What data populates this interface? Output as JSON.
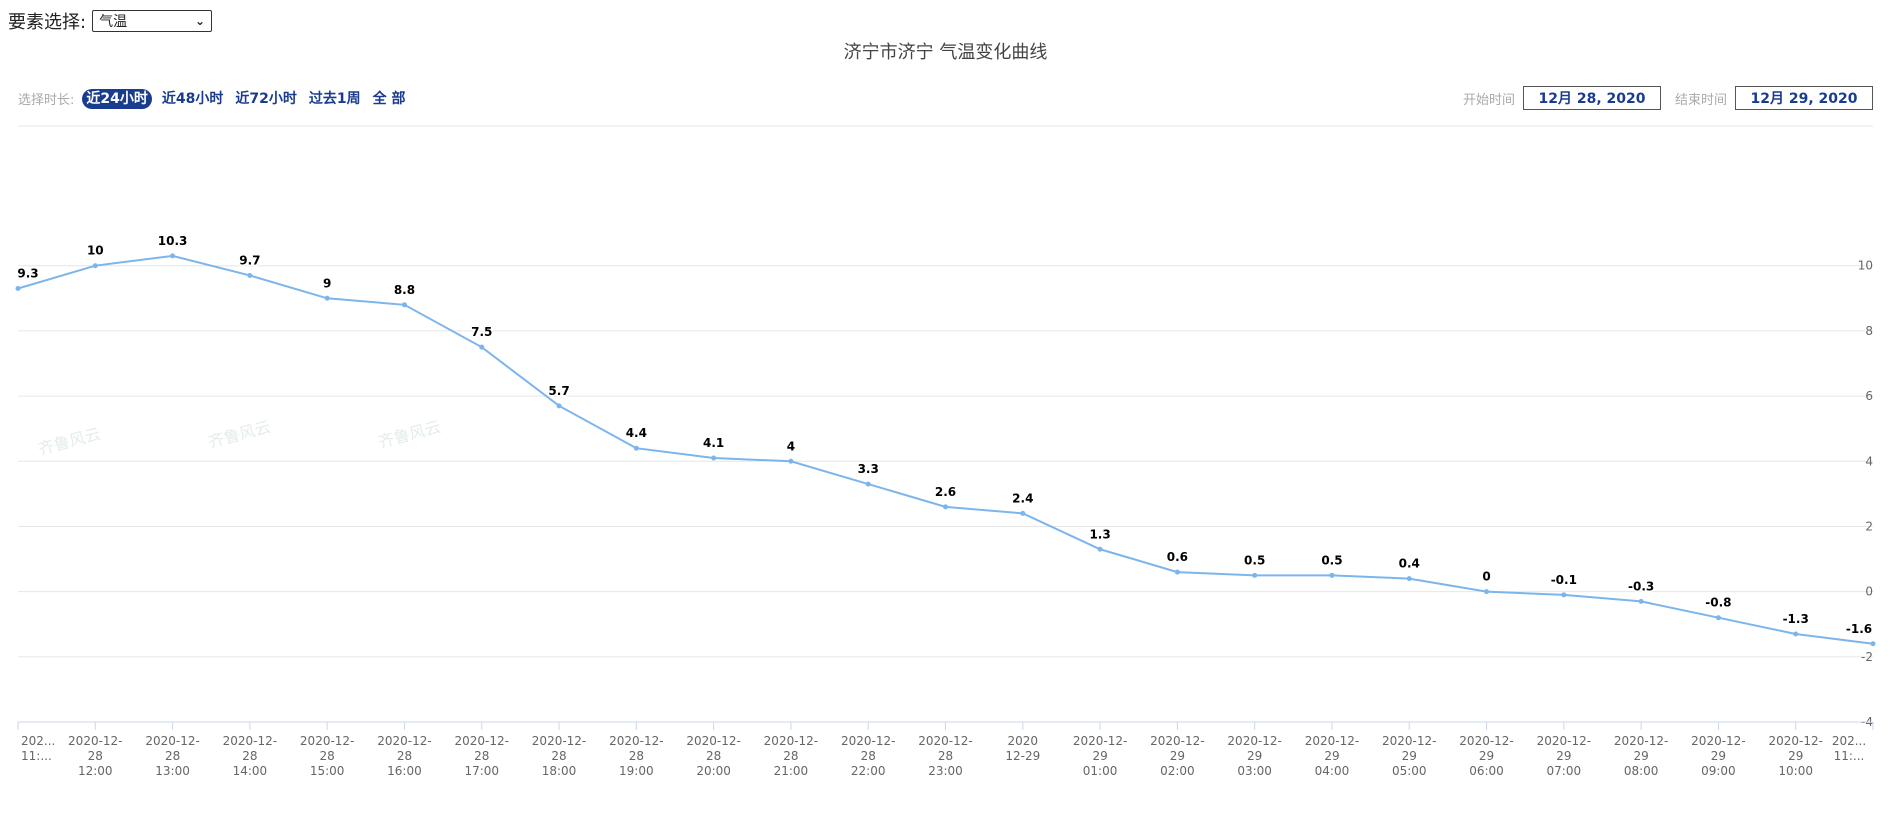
{
  "controls": {
    "element_label": "要素选择:",
    "element_value": "气温",
    "range_label": "选择时长:",
    "ranges": [
      "近24小时",
      "近48小时",
      "近72小时",
      "过去1周",
      "全 部"
    ],
    "active_range": 0,
    "start_label": "开始时间",
    "start_value": "12月 28, 2020",
    "end_label": "结束时间",
    "end_value": "12月 29, 2020"
  },
  "watermark": "齐鲁风云",
  "chart_data": {
    "type": "line",
    "title": "济宁市济宁 气温变化曲线",
    "xlabel": "",
    "ylabel": "",
    "ylim": [
      -4,
      12
    ],
    "yticks": [
      10,
      8,
      6,
      4,
      2,
      0,
      -2,
      -4
    ],
    "y_axis_position": "right",
    "grid": true,
    "line_color": "#7cb5ec",
    "categories": [
      [
        "202...",
        "11:..."
      ],
      [
        "2020-12-",
        "28",
        "12:00"
      ],
      [
        "2020-12-",
        "28",
        "13:00"
      ],
      [
        "2020-12-",
        "28",
        "14:00"
      ],
      [
        "2020-12-",
        "28",
        "15:00"
      ],
      [
        "2020-12-",
        "28",
        "16:00"
      ],
      [
        "2020-12-",
        "28",
        "17:00"
      ],
      [
        "2020-12-",
        "28",
        "18:00"
      ],
      [
        "2020-12-",
        "28",
        "19:00"
      ],
      [
        "2020-12-",
        "28",
        "20:00"
      ],
      [
        "2020-12-",
        "28",
        "21:00"
      ],
      [
        "2020-12-",
        "28",
        "22:00"
      ],
      [
        "2020-12-",
        "28",
        "23:00"
      ],
      [
        "2020",
        "12-29"
      ],
      [
        "2020-12-",
        "29",
        "01:00"
      ],
      [
        "2020-12-",
        "29",
        "02:00"
      ],
      [
        "2020-12-",
        "29",
        "03:00"
      ],
      [
        "2020-12-",
        "29",
        "04:00"
      ],
      [
        "2020-12-",
        "29",
        "05:00"
      ],
      [
        "2020-12-",
        "29",
        "06:00"
      ],
      [
        "2020-12-",
        "29",
        "07:00"
      ],
      [
        "2020-12-",
        "29",
        "08:00"
      ],
      [
        "2020-12-",
        "29",
        "09:00"
      ],
      [
        "2020-12-",
        "29",
        "10:00"
      ],
      [
        "202...",
        "11:..."
      ]
    ],
    "values": [
      9.3,
      10,
      10.3,
      9.7,
      9,
      8.8,
      7.5,
      5.7,
      4.4,
      4.1,
      4,
      3.3,
      2.6,
      2.4,
      1.3,
      0.6,
      0.5,
      0.5,
      0.4,
      0,
      -0.1,
      -0.3,
      -0.8,
      -1.3,
      -1.6
    ]
  }
}
